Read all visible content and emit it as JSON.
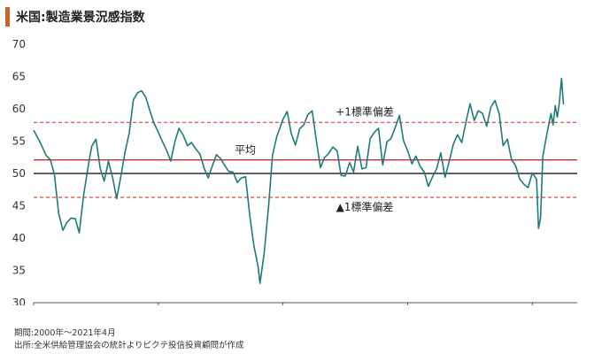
{
  "title": "米国:製造業景況感指数",
  "footnotes": {
    "period": "期間:2000年〜2021年4月",
    "source": "出所:全米供給管理協会の統計よりピクテ投信投資顧問が作成"
  },
  "colors": {
    "accent": "#c8642a",
    "series": "#1f7a7a",
    "mean_line": "#c0302b",
    "sd_line": "#d9453a",
    "reference_line": "#000000",
    "axis": "#555555"
  },
  "chart_data": {
    "type": "line",
    "title": "米国:製造業景況感指数",
    "xlim": [
      2000,
      2021.8
    ],
    "ylim": [
      30,
      70
    ],
    "x_ticks": [
      2000,
      2005,
      2010,
      2015,
      2020
    ],
    "y_ticks": [
      30,
      35,
      40,
      45,
      50,
      55,
      60,
      65,
      70
    ],
    "grid": false,
    "reference_lines": [
      {
        "value": 57.9,
        "label": "+1標準偏差",
        "style": "dashed"
      },
      {
        "value": 52.1,
        "label": "平均",
        "style": "solid"
      },
      {
        "value": 50,
        "label": "",
        "style": "solid"
      },
      {
        "value": 46.3,
        "label": "▲1標準偏差",
        "style": "dashed"
      }
    ],
    "series": [
      {
        "name": "",
        "points": [
          [
            2000.0,
            56.7
          ],
          [
            2000.25,
            54.9
          ],
          [
            2000.5,
            52.8
          ],
          [
            2000.67,
            52.1
          ],
          [
            2000.83,
            49.9
          ],
          [
            2001.0,
            43.9
          ],
          [
            2001.17,
            41.2
          ],
          [
            2001.33,
            42.4
          ],
          [
            2001.5,
            43.1
          ],
          [
            2001.67,
            43.0
          ],
          [
            2001.83,
            40.8
          ],
          [
            2002.0,
            46.5
          ],
          [
            2002.17,
            50.7
          ],
          [
            2002.33,
            54.2
          ],
          [
            2002.5,
            55.3
          ],
          [
            2002.67,
            50.8
          ],
          [
            2002.83,
            48.8
          ],
          [
            2003.0,
            51.9
          ],
          [
            2003.17,
            49.3
          ],
          [
            2003.33,
            46.1
          ],
          [
            2003.5,
            49.6
          ],
          [
            2003.67,
            53.4
          ],
          [
            2003.83,
            56.2
          ],
          [
            2004.0,
            61.4
          ],
          [
            2004.17,
            62.5
          ],
          [
            2004.33,
            62.8
          ],
          [
            2004.5,
            61.8
          ],
          [
            2004.67,
            59.6
          ],
          [
            2004.83,
            57.8
          ],
          [
            2005.0,
            56.4
          ],
          [
            2005.17,
            54.9
          ],
          [
            2005.33,
            53.6
          ],
          [
            2005.5,
            51.9
          ],
          [
            2005.67,
            55.0
          ],
          [
            2005.83,
            57.0
          ],
          [
            2006.0,
            55.9
          ],
          [
            2006.17,
            54.3
          ],
          [
            2006.33,
            54.8
          ],
          [
            2006.5,
            53.8
          ],
          [
            2006.67,
            53.0
          ],
          [
            2006.83,
            50.9
          ],
          [
            2007.0,
            49.3
          ],
          [
            2007.17,
            51.2
          ],
          [
            2007.33,
            52.9
          ],
          [
            2007.5,
            52.3
          ],
          [
            2007.67,
            51.2
          ],
          [
            2007.83,
            50.3
          ],
          [
            2008.0,
            50.2
          ],
          [
            2008.17,
            48.6
          ],
          [
            2008.33,
            49.3
          ],
          [
            2008.5,
            49.5
          ],
          [
            2008.67,
            43.4
          ],
          [
            2008.83,
            38.9
          ],
          [
            2009.0,
            35.6
          ],
          [
            2009.08,
            33.0
          ],
          [
            2009.25,
            37.8
          ],
          [
            2009.42,
            44.8
          ],
          [
            2009.58,
            52.8
          ],
          [
            2009.75,
            55.7
          ],
          [
            2010.0,
            58.4
          ],
          [
            2010.17,
            59.6
          ],
          [
            2010.33,
            56.2
          ],
          [
            2010.5,
            54.4
          ],
          [
            2010.67,
            56.9
          ],
          [
            2010.83,
            57.5
          ],
          [
            2011.0,
            59.1
          ],
          [
            2011.17,
            59.7
          ],
          [
            2011.33,
            55.3
          ],
          [
            2011.5,
            50.9
          ],
          [
            2011.67,
            52.5
          ],
          [
            2011.83,
            53.1
          ],
          [
            2012.0,
            54.1
          ],
          [
            2012.17,
            53.5
          ],
          [
            2012.33,
            49.7
          ],
          [
            2012.5,
            49.6
          ],
          [
            2012.67,
            51.7
          ],
          [
            2012.83,
            50.2
          ],
          [
            2013.0,
            54.2
          ],
          [
            2013.17,
            50.7
          ],
          [
            2013.33,
            50.9
          ],
          [
            2013.5,
            55.4
          ],
          [
            2013.67,
            56.4
          ],
          [
            2013.83,
            57.0
          ],
          [
            2014.0,
            51.3
          ],
          [
            2014.17,
            54.9
          ],
          [
            2014.33,
            55.4
          ],
          [
            2014.5,
            57.1
          ],
          [
            2014.67,
            59.0
          ],
          [
            2014.83,
            55.1
          ],
          [
            2015.0,
            53.5
          ],
          [
            2015.17,
            51.5
          ],
          [
            2015.33,
            52.7
          ],
          [
            2015.5,
            51.1
          ],
          [
            2015.67,
            50.2
          ],
          [
            2015.83,
            48.0
          ],
          [
            2016.0,
            49.5
          ],
          [
            2016.17,
            50.8
          ],
          [
            2016.33,
            53.2
          ],
          [
            2016.5,
            49.4
          ],
          [
            2016.67,
            51.9
          ],
          [
            2016.83,
            54.5
          ],
          [
            2017.0,
            56.0
          ],
          [
            2017.17,
            54.8
          ],
          [
            2017.33,
            57.8
          ],
          [
            2017.5,
            60.8
          ],
          [
            2017.67,
            58.2
          ],
          [
            2017.83,
            59.7
          ],
          [
            2018.0,
            59.3
          ],
          [
            2018.17,
            57.3
          ],
          [
            2018.33,
            60.2
          ],
          [
            2018.5,
            61.3
          ],
          [
            2018.67,
            59.3
          ],
          [
            2018.83,
            54.3
          ],
          [
            2019.0,
            55.3
          ],
          [
            2019.17,
            52.1
          ],
          [
            2019.33,
            51.2
          ],
          [
            2019.5,
            49.1
          ],
          [
            2019.67,
            48.3
          ],
          [
            2019.83,
            47.8
          ],
          [
            2020.0,
            50.1
          ],
          [
            2020.17,
            49.1
          ],
          [
            2020.25,
            41.5
          ],
          [
            2020.33,
            43.1
          ],
          [
            2020.42,
            52.6
          ],
          [
            2020.58,
            56.0
          ],
          [
            2020.75,
            59.3
          ],
          [
            2020.83,
            57.5
          ],
          [
            2020.92,
            60.5
          ],
          [
            2021.0,
            58.7
          ],
          [
            2021.08,
            60.8
          ],
          [
            2021.17,
            64.7
          ],
          [
            2021.25,
            60.7
          ]
        ]
      }
    ]
  }
}
